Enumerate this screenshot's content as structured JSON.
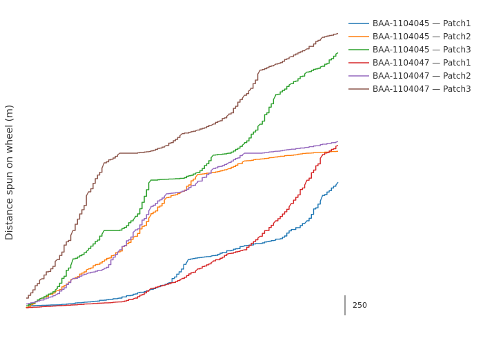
{
  "chart_data": {
    "type": "line",
    "title": "",
    "xlabel": "",
    "ylabel": "Distance spun on wheel (m)",
    "grid": false,
    "legend_position": "top-right",
    "scale_bar": {
      "label": "250",
      "length": 250
    },
    "ylim": [
      -50,
      1450
    ],
    "xlim": [
      0,
      100
    ],
    "series": [
      {
        "name": "BAA-1104045 — Patch1",
        "color": "#1f77b4",
        "x": [
          0,
          10,
          20,
          30,
          40,
          46,
          52,
          60,
          70,
          80,
          90,
          95,
          100
        ],
        "y": [
          10,
          15,
          30,
          50,
          95,
          130,
          250,
          270,
          320,
          350,
          450,
          580,
          650
        ]
      },
      {
        "name": "BAA-1104045 — Patch2",
        "color": "#ff7f0e",
        "x": [
          0,
          5,
          10,
          15,
          20,
          28,
          35,
          40,
          45,
          50,
          55,
          60,
          65,
          70,
          80,
          90,
          100
        ],
        "y": [
          0,
          50,
          90,
          150,
          200,
          270,
          370,
          480,
          570,
          600,
          690,
          700,
          720,
          760,
          780,
          800,
          810
        ]
      },
      {
        "name": "BAA-1104045 — Patch3",
        "color": "#2ca02c",
        "x": [
          0,
          5,
          10,
          15,
          20,
          25,
          30,
          35,
          40,
          50,
          55,
          60,
          65,
          70,
          75,
          80,
          85,
          90,
          95,
          100
        ],
        "y": [
          10,
          50,
          100,
          250,
          300,
          400,
          400,
          470,
          660,
          670,
          700,
          790,
          800,
          850,
          950,
          1100,
          1160,
          1220,
          1250,
          1320
        ]
      },
      {
        "name": "BAA-1104047 — Patch1",
        "color": "#d62728",
        "x": [
          0,
          10,
          20,
          30,
          35,
          40,
          45,
          50,
          55,
          60,
          65,
          70,
          75,
          80,
          85,
          90,
          95,
          100
        ],
        "y": [
          0,
          10,
          20,
          30,
          50,
          100,
          120,
          150,
          200,
          240,
          280,
          300,
          370,
          450,
          540,
          660,
          790,
          840
        ]
      },
      {
        "name": "BAA-1104047 — Patch2",
        "color": "#9467bd",
        "x": [
          0,
          5,
          10,
          15,
          20,
          25,
          30,
          35,
          40,
          45,
          50,
          55,
          60,
          65,
          70,
          75,
          80,
          90,
          100
        ],
        "y": [
          20,
          40,
          70,
          150,
          180,
          200,
          300,
          400,
          520,
          590,
          600,
          650,
          720,
          750,
          800,
          800,
          810,
          830,
          860
        ]
      },
      {
        "name": "BAA-1104047 — Patch3",
        "color": "#8c564b",
        "x": [
          0,
          5,
          10,
          15,
          20,
          25,
          30,
          35,
          40,
          45,
          50,
          55,
          60,
          65,
          70,
          72,
          75,
          80,
          85,
          90,
          95,
          100
        ],
        "y": [
          50,
          150,
          250,
          400,
          600,
          750,
          800,
          800,
          810,
          840,
          900,
          920,
          950,
          1000,
          1100,
          1130,
          1230,
          1260,
          1300,
          1340,
          1400,
          1420
        ]
      }
    ]
  }
}
